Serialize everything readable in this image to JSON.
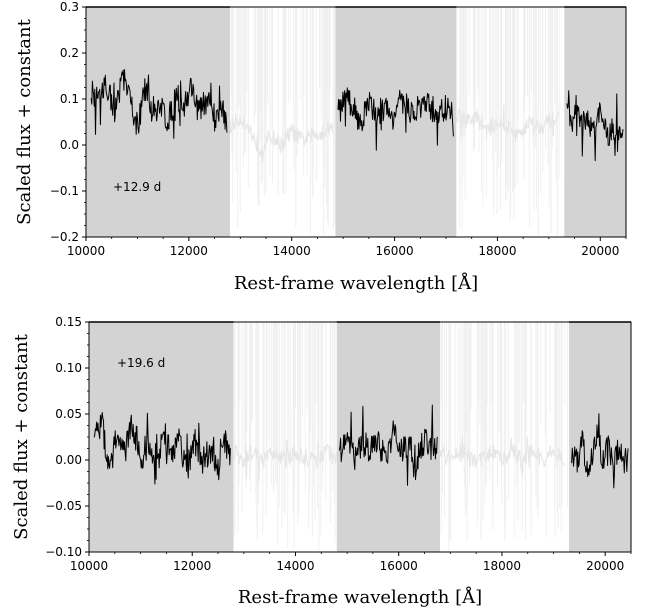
{
  "chart_data": [
    {
      "type": "line",
      "xlabel": "Rest-frame wavelength [Å]",
      "ylabel": "Scaled flux + constant",
      "xlim": [
        10000,
        20500
      ],
      "ylim": [
        -0.2,
        0.3
      ],
      "xticks": [
        10000,
        12000,
        14000,
        16000,
        18000,
        20000
      ],
      "yticks": [
        -0.2,
        -0.1,
        0.0,
        0.1,
        0.2,
        0.3
      ],
      "xtick_labels": [
        "10000",
        "12000",
        "14000",
        "16000",
        "18000",
        "20000"
      ],
      "ytick_labels": [
        "−0.2",
        "−0.1",
        "0.0",
        "0.1",
        "0.2",
        "0.3"
      ],
      "annotation": "+12.9 d",
      "shaded_regions": [
        [
          10000,
          12800
        ],
        [
          14850,
          17200
        ],
        [
          19300,
          20500
        ]
      ],
      "shade_color": "#d3d3d3",
      "gap_regions": [
        [
          12800,
          14850
        ],
        [
          17200,
          19300
        ]
      ],
      "series": [
        {
          "color": "#000000",
          "segments": [
            {
              "x": [
                10100,
                10250,
                10400,
                10550,
                10700,
                10850,
                11000,
                11150,
                11300,
                11450,
                11600,
                11750,
                11900,
                12050,
                12200,
                12350,
                12500,
                12650,
                12750
              ],
              "y": [
                0.12,
                0.09,
                0.14,
                0.06,
                0.15,
                0.1,
                0.04,
                0.12,
                0.07,
                0.09,
                0.05,
                0.11,
                0.08,
                0.13,
                0.07,
                0.1,
                0.06,
                0.08,
                0.05
              ]
            },
            {
              "x": [
                14900,
                15050,
                15200,
                15350,
                15500,
                15650,
                15800,
                15950,
                16100,
                16250,
                16400,
                16550,
                16700,
                16850,
                17000,
                17150
              ],
              "y": [
                0.07,
                0.1,
                0.08,
                0.05,
                0.09,
                0.07,
                0.08,
                0.06,
                0.09,
                0.08,
                0.07,
                0.09,
                0.08,
                0.07,
                0.08,
                0.06
              ]
            },
            {
              "x": [
                19350,
                19450,
                19550,
                19650,
                19750,
                19850,
                19950,
                20050,
                20150,
                20250,
                20350,
                20450
              ],
              "y": [
                0.07,
                0.05,
                0.09,
                0.04,
                0.06,
                0.03,
                0.07,
                0.05,
                0.02,
                0.04,
                0.01,
                0.03
              ]
            }
          ]
        },
        {
          "color": "#e6e6e6",
          "segments": [
            {
              "x": [
                12800,
                13000,
                13200,
                13400,
                13600,
                13800,
                14000,
                14200,
                14400,
                14600,
                14800
              ],
              "y": [
                0.04,
                0.06,
                0.03,
                -0.01,
                0.02,
                0.0,
                0.03,
                0.01,
                0.02,
                0.03,
                0.04
              ]
            },
            {
              "x": [
                17200,
                17400,
                17600,
                17800,
                18000,
                18200,
                18400,
                18600,
                18800,
                19000,
                19200
              ],
              "y": [
                0.07,
                0.05,
                0.06,
                0.03,
                0.05,
                0.04,
                0.02,
                0.05,
                0.04,
                0.05,
                0.06
              ]
            }
          ]
        }
      ]
    },
    {
      "type": "line",
      "xlabel": "Rest-frame wavelength [Å]",
      "ylabel": "Scaled flux + constant",
      "xlim": [
        10000,
        20500
      ],
      "ylim": [
        -0.1,
        0.15
      ],
      "xticks": [
        10000,
        12000,
        14000,
        16000,
        18000,
        20000
      ],
      "yticks": [
        -0.1,
        -0.05,
        0.0,
        0.05,
        0.1,
        0.15
      ],
      "xtick_labels": [
        "10000",
        "12000",
        "14000",
        "16000",
        "18000",
        "20000"
      ],
      "ytick_labels": [
        "−0.10",
        "−0.05",
        "0.00",
        "0.05",
        "0.10",
        "0.15"
      ],
      "annotation": "+19.6 d",
      "shaded_regions": [
        [
          10000,
          12800
        ],
        [
          14800,
          16800
        ],
        [
          19300,
          20500
        ]
      ],
      "shade_color": "#d3d3d3",
      "gap_regions": [
        [
          12800,
          14800
        ],
        [
          16800,
          19300
        ]
      ],
      "series": [
        {
          "color": "#000000",
          "segments": [
            {
              "x": [
                10100,
                10250,
                10400,
                10550,
                10700,
                10850,
                11000,
                11150,
                11300,
                11450,
                11600,
                11750,
                11900,
                12050,
                12200,
                12350,
                12500,
                12650,
                12750
              ],
              "y": [
                0.02,
                0.04,
                -0.01,
                0.03,
                0.01,
                0.04,
                0.0,
                0.02,
                -0.02,
                0.03,
                0.01,
                0.02,
                -0.01,
                0.02,
                0.0,
                0.01,
                -0.01,
                0.02,
                0.0
              ]
            },
            {
              "x": [
                14850,
                15000,
                15150,
                15300,
                15450,
                15600,
                15750,
                15900,
                16050,
                16200,
                16350,
                16500,
                16650,
                16750
              ],
              "y": [
                0.01,
                0.02,
                0.0,
                0.02,
                0.01,
                0.02,
                0.0,
                0.03,
                0.01,
                0.02,
                0.0,
                0.02,
                0.01,
                0.02
              ]
            },
            {
              "x": [
                19350,
                19450,
                19550,
                19650,
                19750,
                19850,
                19950,
                20050,
                20150,
                20250,
                20350,
                20450
              ],
              "y": [
                0.01,
                0.0,
                0.02,
                -0.01,
                0.01,
                0.03,
                0.0,
                0.02,
                -0.01,
                0.01,
                0.0,
                0.0
              ]
            }
          ]
        },
        {
          "color": "#e6e6e6",
          "segments": [
            {
              "x": [
                12800,
                13000,
                13200,
                13400,
                13600,
                13800,
                14000,
                14200,
                14400,
                14600,
                14800
              ],
              "y": [
                0.01,
                0.0,
                0.01,
                0.0,
                0.01,
                0.0,
                0.01,
                0.0,
                0.0,
                0.01,
                0.0
              ]
            },
            {
              "x": [
                16800,
                17000,
                17200,
                17400,
                17600,
                17800,
                18000,
                18200,
                18400,
                18600,
                18800,
                19000,
                19200
              ],
              "y": [
                0.01,
                0.0,
                0.01,
                0.0,
                0.0,
                0.01,
                0.0,
                0.01,
                0.0,
                0.01,
                0.0,
                0.01,
                0.0
              ]
            }
          ]
        }
      ]
    }
  ]
}
